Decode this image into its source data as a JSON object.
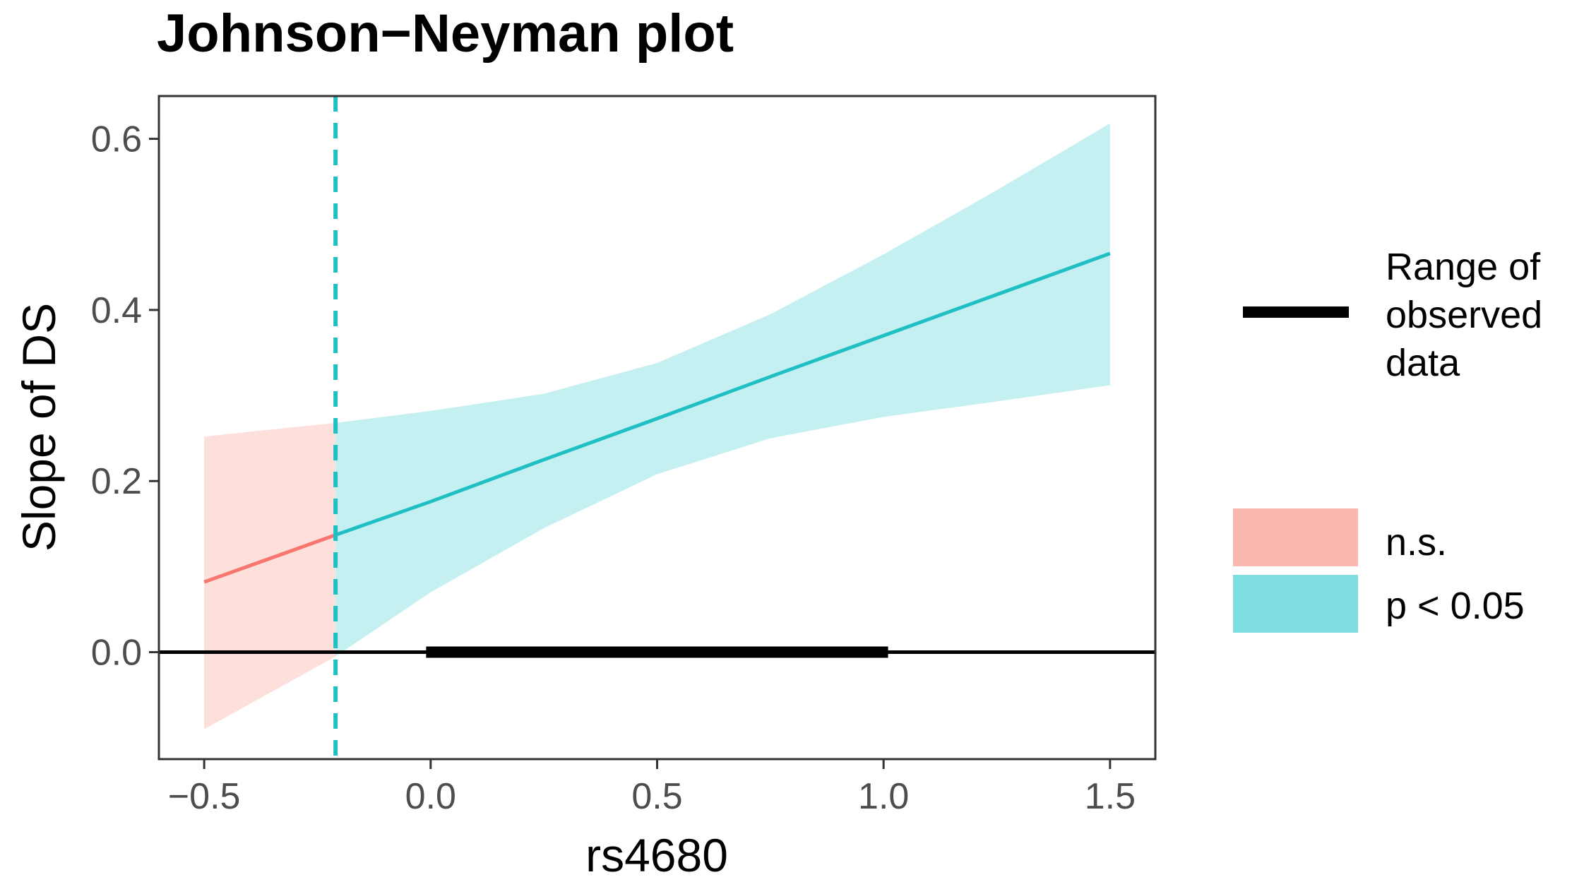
{
  "chart_data": {
    "type": "line",
    "title": "Johnson−Neyman plot",
    "xlabel": "rs4680",
    "ylabel": "Slope of DS",
    "xlim": [
      -0.6,
      1.6
    ],
    "ylim": [
      -0.125,
      0.65
    ],
    "x_ticks": [
      -0.5,
      0.0,
      0.5,
      1.0,
      1.5
    ],
    "x_tick_labels": [
      "−0.5",
      "0.0",
      "0.5",
      "1.0",
      "1.5"
    ],
    "y_ticks": [
      0.0,
      0.2,
      0.4,
      0.6
    ],
    "y_tick_labels": [
      "0.0",
      "0.2",
      "0.4",
      "0.6"
    ],
    "johnson_neyman_point": -0.21,
    "zero_line": 0.0,
    "observed_data_range": [
      -0.01,
      1.01
    ],
    "series": [
      {
        "name": "n.s.",
        "color": "#F8766D",
        "band_color": "#FBB8B0",
        "x": [
          -0.5,
          -0.21
        ],
        "y": [
          0.082,
          0.137
        ],
        "lower": [
          -0.09,
          -0.005
        ],
        "upper": [
          0.252,
          0.268
        ]
      },
      {
        "name": "p < 0.05",
        "color": "#1FBFC4",
        "band_color": "#7FDEE0",
        "x": [
          -0.21,
          0.0,
          0.25,
          0.5,
          0.75,
          1.0,
          1.25,
          1.5
        ],
        "y": [
          0.137,
          0.176,
          0.225,
          0.273,
          0.322,
          0.37,
          0.418,
          0.466
        ],
        "lower": [
          -0.005,
          0.07,
          0.145,
          0.208,
          0.25,
          0.275,
          0.293,
          0.312
        ],
        "upper": [
          0.268,
          0.282,
          0.302,
          0.338,
          0.395,
          0.465,
          0.54,
          0.618
        ]
      }
    ],
    "legend": {
      "placement": "right",
      "range_label_lines": [
        "Range of",
        "observed",
        "data"
      ],
      "entries": [
        "n.s.",
        "p < 0.05"
      ]
    },
    "grid": false
  }
}
